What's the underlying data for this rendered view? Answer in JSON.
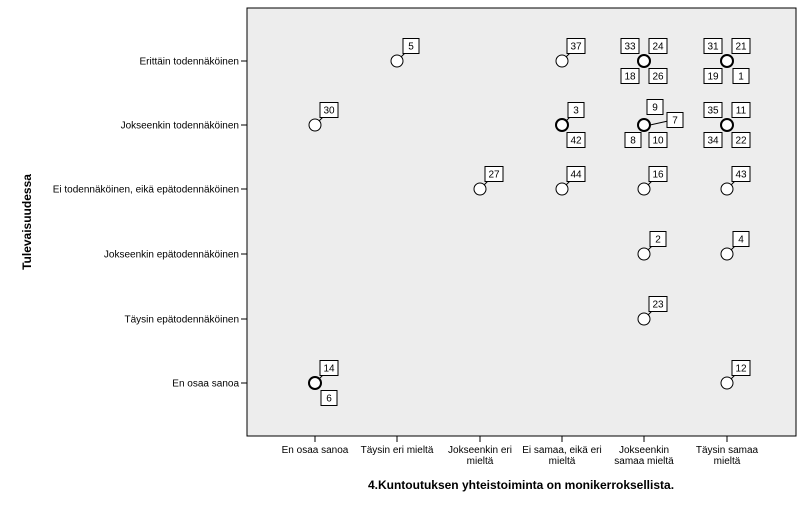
{
  "chart_data": {
    "type": "scatter",
    "xlabel": "4.Kuntoutuksen yhteistoiminta on  monikerroksellista.",
    "ylabel": "Tulevaisuudessa",
    "categories_x": [
      [
        "En osaa sanoa"
      ],
      [
        "Täysin eri mieltä"
      ],
      [
        "Jokseenkin eri",
        "mieltä"
      ],
      [
        "Ei samaa, eikä eri",
        "mieltä"
      ],
      [
        "Jokseenkin",
        "samaa mieltä"
      ],
      [
        "Täysin samaa",
        "mieltä"
      ]
    ],
    "categories_y": [
      "Erittäin todennäköinen",
      "Jokseenkin todennäköinen",
      "Ei todennäköinen, eikä epätodennäköinen",
      "Jokseenkin epätodennäköinen",
      "Täysin epätodennäköinen",
      "En osaa sanoa"
    ],
    "grid": false,
    "points": [
      {
        "x": 1,
        "y": 0,
        "labels": [
          "5"
        ]
      },
      {
        "x": 3,
        "y": 0,
        "labels": [
          "37"
        ]
      },
      {
        "x": 4,
        "y": 0,
        "labels": [
          "33",
          "24",
          "18",
          "26"
        ]
      },
      {
        "x": 5,
        "y": 0,
        "labels": [
          "31",
          "21",
          "19",
          "1"
        ]
      },
      {
        "x": 0,
        "y": 1,
        "labels": [
          "30"
        ]
      },
      {
        "x": 3,
        "y": 1,
        "labels": [
          "3",
          "42"
        ]
      },
      {
        "x": 4,
        "y": 1,
        "labels": [
          "9",
          "7",
          "8",
          "10"
        ]
      },
      {
        "x": 5,
        "y": 1,
        "labels": [
          "35",
          "11",
          "34",
          "22"
        ]
      },
      {
        "x": 2,
        "y": 2,
        "labels": [
          "27"
        ]
      },
      {
        "x": 3,
        "y": 2,
        "labels": [
          "44"
        ]
      },
      {
        "x": 4,
        "y": 2,
        "labels": [
          "16"
        ]
      },
      {
        "x": 5,
        "y": 2,
        "labels": [
          "43"
        ]
      },
      {
        "x": 4,
        "y": 3,
        "labels": [
          "2"
        ]
      },
      {
        "x": 5,
        "y": 3,
        "labels": [
          "4"
        ]
      },
      {
        "x": 4,
        "y": 4,
        "labels": [
          "23"
        ]
      },
      {
        "x": 0,
        "y": 5,
        "labels": [
          "14",
          "6"
        ]
      },
      {
        "x": 5,
        "y": 5,
        "labels": [
          "12"
        ]
      }
    ],
    "colors": {
      "plot_background": "#ededed",
      "marker_fill": "#ffffff",
      "marker_stroke": "#000000"
    }
  }
}
